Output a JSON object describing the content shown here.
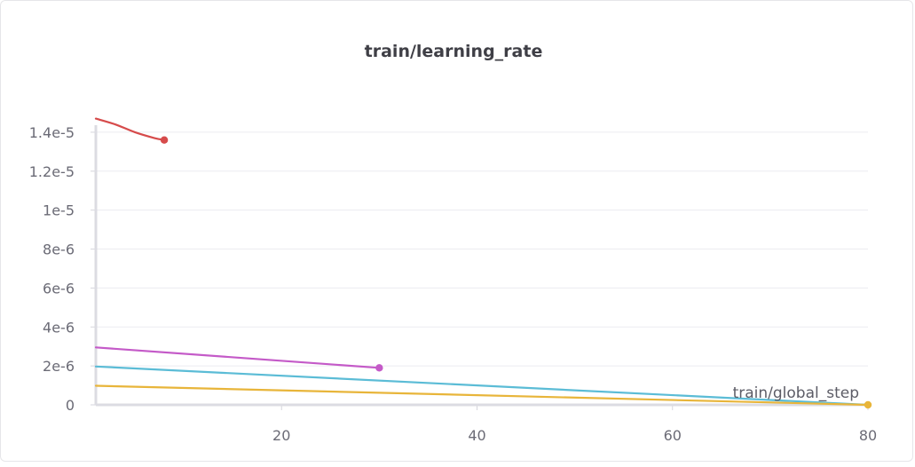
{
  "panel": {
    "title": "train/learning_rate"
  },
  "chart_data": {
    "type": "line",
    "title": "train/learning_rate",
    "xlabel": "train/global_step",
    "ylabel": "",
    "xlim": [
      1,
      80
    ],
    "ylim": [
      0,
      1.5e-05
    ],
    "x_ticks": [
      20,
      40,
      60,
      80
    ],
    "x_tick_labels": [
      "20",
      "40",
      "60",
      "80"
    ],
    "y_ticks": [
      0,
      2e-06,
      4e-06,
      6e-06,
      8e-06,
      1e-05,
      1.2e-05,
      1.4e-05
    ],
    "y_tick_labels": [
      "0",
      "2e-6",
      "4e-6",
      "6e-6",
      "8e-6",
      "1e-5",
      "1.2e-5",
      "1.4e-5"
    ],
    "grid": true,
    "legend": "none",
    "series": [
      {
        "color": "#d64b4b",
        "x": [
          1,
          3,
          5,
          7,
          8
        ],
        "y": [
          1.47e-05,
          1.44e-05,
          1.4e-05,
          1.37e-05,
          1.36e-05
        ],
        "end_marker": true
      },
      {
        "color": "#c45ac8",
        "x": [
          1,
          30
        ],
        "y": [
          2.95e-06,
          1.9e-06
        ],
        "end_marker": true
      },
      {
        "color": "#5bbcd6",
        "x": [
          1,
          80
        ],
        "y": [
          1.97e-06,
          0
        ],
        "end_marker": false
      },
      {
        "color": "#e8b53a",
        "x": [
          1,
          80
        ],
        "y": [
          9.8e-07,
          0
        ],
        "end_marker": true
      }
    ]
  }
}
